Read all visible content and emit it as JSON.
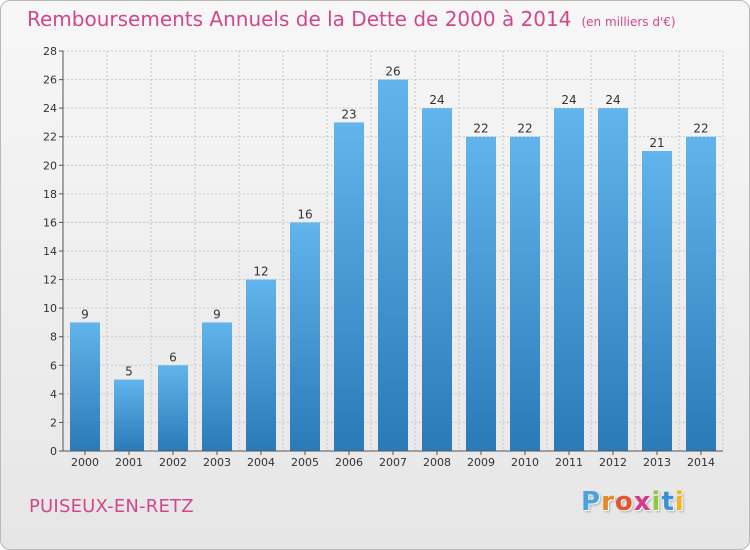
{
  "title": "Remboursements Annuels de la Dette de 2000 à 2014",
  "unit": "(en milliers d'€)",
  "commune": "PUISEUX-EN-RETZ",
  "logo": {
    "text": "Proxiti",
    "letter_colors": [
      "#4aa3df",
      "#e8862a",
      "#e2562f",
      "#d33b8b",
      "#8fc73e",
      "#3a8fd6",
      "#f0b41f"
    ]
  },
  "colors": {
    "accent": "#d2478c",
    "bar_top": "#62b4ec",
    "bar_bottom": "#2a7ab8",
    "grid": "#c8c8c8"
  },
  "chart_data": {
    "type": "bar",
    "title": "Remboursements Annuels de la Dette de 2000 à 2014",
    "ylabel": "",
    "xlabel": "",
    "categories": [
      "2000",
      "2001",
      "2002",
      "2003",
      "2004",
      "2005",
      "2006",
      "2007",
      "2008",
      "2009",
      "2010",
      "2011",
      "2012",
      "2013",
      "2014"
    ],
    "values": [
      9,
      5,
      6,
      9,
      12,
      16,
      23,
      26,
      24,
      22,
      22,
      24,
      24,
      21,
      22
    ],
    "ylim": [
      0,
      28
    ],
    "yticks": [
      0,
      2,
      4,
      6,
      8,
      10,
      12,
      14,
      16,
      18,
      20,
      22,
      24,
      26,
      28
    ],
    "grid": true,
    "data_labels": true
  }
}
